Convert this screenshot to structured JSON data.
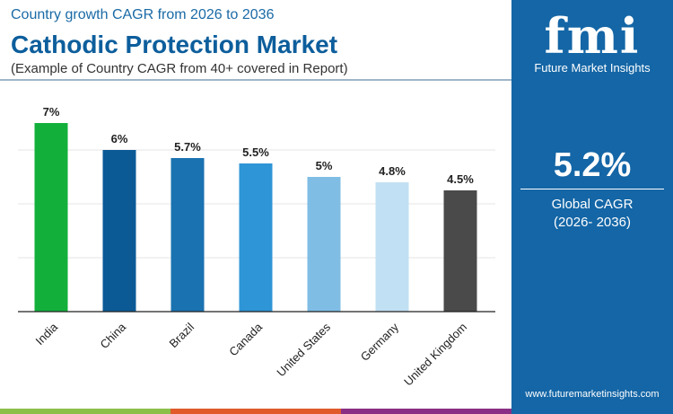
{
  "header": {
    "subtitle": "Country growth CAGR from 2026 to 2036",
    "title": "Cathodic Protection Market",
    "note": "(Example of Country CAGR from 40+ covered in Report)"
  },
  "brand": {
    "logo": "fmi",
    "name": "Future Market Insights",
    "url": "www.futuremarketinsights.com"
  },
  "summary": {
    "value": "5.2%",
    "label": "Global CAGR",
    "period": "(2026- 2036)"
  },
  "chart_data": {
    "type": "bar",
    "categories": [
      "India",
      "China",
      "Brazil",
      "Canada",
      "United States",
      "Germany",
      "United Kingdom"
    ],
    "values": [
      7,
      6,
      5.7,
      5.5,
      5,
      4.8,
      4.5
    ],
    "labels": [
      "7%",
      "6%",
      "5.7%",
      "5.5%",
      "5%",
      "4.8%",
      "4.5%"
    ],
    "colors": [
      "#12b03b",
      "#0b5a96",
      "#1a72b0",
      "#2e95d6",
      "#7fbde4",
      "#c2e0f3",
      "#4a4a4a"
    ],
    "ylim": [
      0,
      7
    ],
    "grid": true,
    "xlabel": "",
    "ylabel": ""
  },
  "colors": {
    "accent": "#1466a6",
    "stripe": [
      "#8cc04b",
      "#e05a2b",
      "#8a2f86"
    ]
  }
}
